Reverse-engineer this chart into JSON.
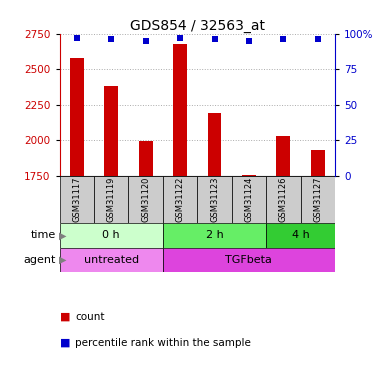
{
  "title": "GDS854 / 32563_at",
  "samples": [
    "GSM31117",
    "GSM31119",
    "GSM31120",
    "GSM31122",
    "GSM31123",
    "GSM31124",
    "GSM31126",
    "GSM31127"
  ],
  "counts": [
    2580,
    2380,
    1995,
    2680,
    2195,
    1755,
    2030,
    1935
  ],
  "percentiles": [
    97,
    96,
    95,
    97,
    96,
    95,
    96,
    96
  ],
  "ylim_left": [
    1750,
    2750
  ],
  "ylim_right": [
    0,
    100
  ],
  "yticks_left": [
    1750,
    2000,
    2250,
    2500,
    2750
  ],
  "yticks_right": [
    0,
    25,
    50,
    75,
    100
  ],
  "bar_color": "#cc0000",
  "dot_color": "#0000cc",
  "time_groups": [
    {
      "label": "0 h",
      "start": 0,
      "end": 3,
      "color": "#ccffcc"
    },
    {
      "label": "2 h",
      "start": 3,
      "end": 6,
      "color": "#66ee66"
    },
    {
      "label": "4 h",
      "start": 6,
      "end": 8,
      "color": "#33cc33"
    }
  ],
  "agent_groups": [
    {
      "label": "untreated",
      "start": 0,
      "end": 3,
      "color": "#ee88ee"
    },
    {
      "label": "TGFbeta",
      "start": 3,
      "end": 8,
      "color": "#dd44dd"
    }
  ],
  "label_color_left": "#cc0000",
  "label_color_right": "#0000cc",
  "grid_color": "#aaaaaa",
  "bg_color": "#ffffff",
  "sample_bg": "#cccccc"
}
